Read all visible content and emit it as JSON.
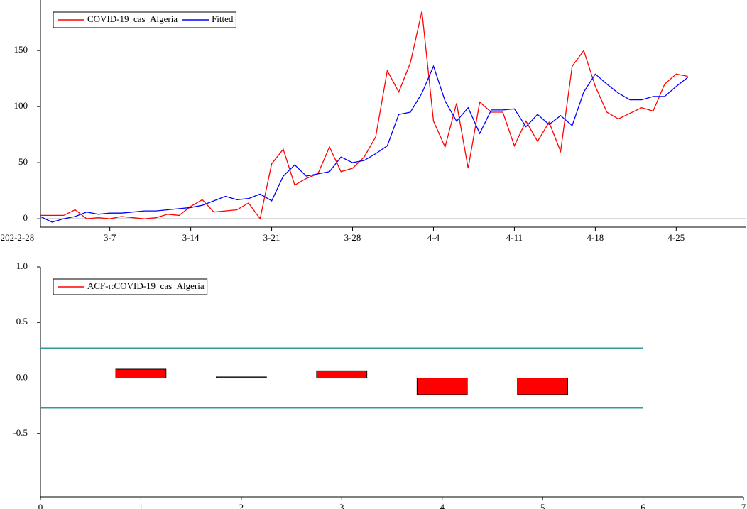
{
  "chart_data": [
    {
      "type": "line",
      "x": [
        "3-1",
        "3-2",
        "3-3",
        "3-4",
        "3-5",
        "3-6",
        "3-7",
        "3-8",
        "3-9",
        "3-10",
        "3-11",
        "3-12",
        "3-13",
        "3-14",
        "3-15",
        "3-16",
        "3-17",
        "3-18",
        "3-19",
        "3-20",
        "3-21",
        "3-22",
        "3-23",
        "3-24",
        "3-25",
        "3-26",
        "3-27",
        "3-28",
        "3-29",
        "3-30",
        "3-31",
        "4-1",
        "4-2",
        "4-3",
        "4-4",
        "4-5",
        "4-6",
        "4-7",
        "4-8",
        "4-9",
        "4-10",
        "4-11",
        "4-12",
        "4-13",
        "4-14",
        "4-15",
        "4-16",
        "4-17",
        "4-18",
        "4-19",
        "4-20",
        "4-21",
        "4-22",
        "4-23",
        "4-24",
        "4-25",
        "4-26"
      ],
      "series": [
        {
          "name": "COVID-19_cas_Algeria",
          "color": "#ff0000",
          "values": [
            3,
            3,
            3,
            8,
            0,
            1,
            0,
            2,
            1,
            0,
            1,
            4,
            3,
            11,
            17,
            6,
            7,
            8,
            14,
            0,
            49,
            62,
            30,
            36,
            40,
            64,
            42,
            45,
            55,
            73,
            132,
            113,
            139,
            185,
            87,
            64,
            103,
            45,
            104,
            95,
            95,
            65,
            87,
            69,
            86,
            60,
            136,
            150,
            118,
            95,
            89,
            94,
            99,
            96,
            120,
            129,
            127
          ]
        },
        {
          "name": "Fitted",
          "color": "#0000ff",
          "values": [
            2,
            -3,
            0,
            2,
            6,
            4,
            5,
            5,
            6,
            7,
            7,
            8,
            9,
            10,
            12,
            16,
            20,
            17,
            18,
            22,
            16,
            38,
            48,
            38,
            40,
            42,
            55,
            50,
            52,
            58,
            65,
            93,
            95,
            112,
            136,
            105,
            87,
            99,
            76,
            97,
            97,
            98,
            82,
            93,
            84,
            92,
            83,
            113,
            129,
            120,
            112,
            106,
            106,
            109,
            109,
            118,
            126
          ]
        }
      ],
      "xlim": [
        "3-1",
        "5-1"
      ],
      "xticks": [
        {
          "value": "2-28",
          "label": "202-2-28"
        },
        "3-7",
        "3-14",
        "3-21",
        "3-28",
        "4-4",
        "4-11",
        "4-18",
        "4-25"
      ],
      "ylim": [
        -7.5,
        195
      ],
      "yticks": [
        0,
        50,
        100,
        150
      ],
      "legend": "upper left"
    },
    {
      "type": "bar",
      "x": [
        1,
        2,
        3,
        4,
        5
      ],
      "series": [
        {
          "name": "ACF-r:COVID-19_cas_Algeria",
          "color": "#ff0000",
          "values": [
            0.08,
            0.01,
            0.065,
            -0.15,
            -0.15
          ]
        }
      ],
      "conf_limits": [
        0.27,
        -0.27
      ],
      "conf_x": [
        0,
        6
      ],
      "conf_color": "#339999",
      "xlim": [
        0,
        7
      ],
      "xticks": [
        0,
        1,
        2,
        3,
        4,
        5,
        6,
        7
      ],
      "ylim": [
        -1.07,
        1.0
      ],
      "yticks": [
        -0.5,
        {
          "value": 0,
          "label": "0.0"
        },
        0.5,
        {
          "value": 1,
          "label": "1.0"
        }
      ],
      "legend": "upper left"
    }
  ]
}
